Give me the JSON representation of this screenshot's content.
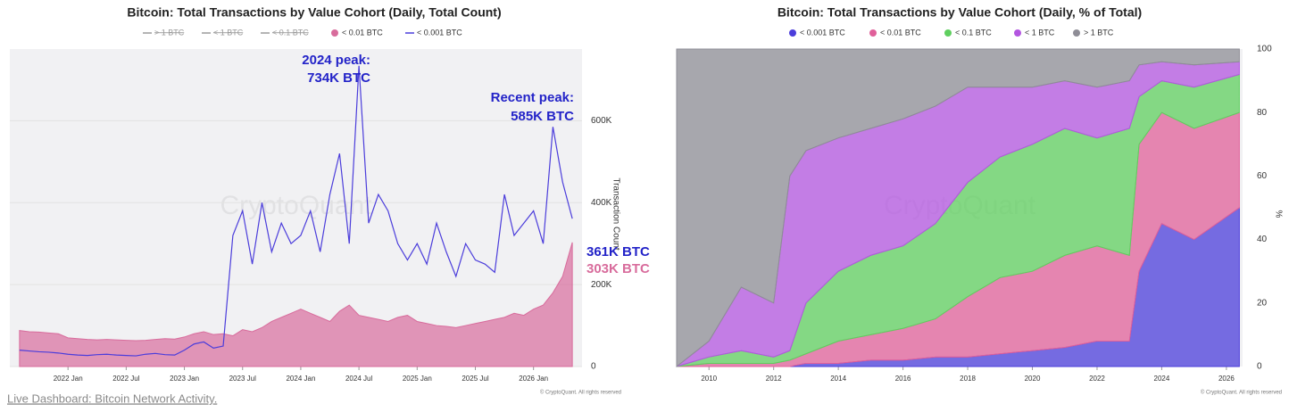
{
  "chart_data": [
    {
      "type": "line",
      "title": "Bitcoin: Total Transactions by Value Cohort (Daily, Total Count)",
      "y_label": "Transaction Count",
      "watermark": "CryptoQuant",
      "credit": "© CryptoQuant. All rights reserved",
      "x": [
        "2021-08",
        "2021-09",
        "2021-10",
        "2021-11",
        "2021-12",
        "2022-01",
        "2022-02",
        "2022-03",
        "2022-04",
        "2022-05",
        "2022-06",
        "2022-07",
        "2022-08",
        "2022-09",
        "2022-10",
        "2022-11",
        "2022-12",
        "2023-01",
        "2023-02",
        "2023-03",
        "2023-04",
        "2023-05",
        "2023-06",
        "2023-07",
        "2023-08",
        "2023-09",
        "2023-10",
        "2023-11",
        "2023-12",
        "2024-01",
        "2024-02",
        "2024-03",
        "2024-04",
        "2024-05",
        "2024-06",
        "2024-07",
        "2024-08",
        "2024-09",
        "2024-10",
        "2024-11",
        "2024-12",
        "2025-01",
        "2025-02",
        "2025-03",
        "2025-04",
        "2025-05",
        "2025-06",
        "2025-07",
        "2025-08",
        "2025-09",
        "2025-10",
        "2025-11",
        "2025-12",
        "2026-01",
        "2026-02",
        "2026-03",
        "2026-04",
        "2026-05"
      ],
      "xlim": [
        "2021-07",
        "2026-06"
      ],
      "xticks": [
        {
          "value": "2022-01",
          "label": "2022 Jan"
        },
        {
          "value": "2022-07",
          "label": "2022 Jul"
        },
        {
          "value": "2023-01",
          "label": "2023 Jan"
        },
        {
          "value": "2023-07",
          "label": "2023 Jul"
        },
        {
          "value": "2024-01",
          "label": "2024 Jan"
        },
        {
          "value": "2024-07",
          "label": "2024 Jul"
        },
        {
          "value": "2025-01",
          "label": "2025 Jan"
        },
        {
          "value": "2025-07",
          "label": "2025 Jul"
        },
        {
          "value": "2026-01",
          "label": "2026 Jan"
        }
      ],
      "ylim": [
        0,
        775000
      ],
      "yticks": [
        0,
        {
          "value": 200000,
          "label": "200K"
        },
        {
          "value": 400000,
          "label": "400K"
        },
        {
          "value": 600000,
          "label": "600K"
        }
      ],
      "series": [
        {
          "name": "> 1 BTC",
          "color": "#9a9a9a",
          "visible": false
        },
        {
          "name": "< 1 BTC",
          "color": "#9a9a9a",
          "visible": false
        },
        {
          "name": "< 0.1 BTC",
          "color": "#9a9a9a",
          "visible": false
        },
        {
          "name": "< 0.01 BTC",
          "color": "#d86c9c",
          "area": true,
          "values": [
            88000,
            85000,
            84000,
            82000,
            80000,
            70000,
            68000,
            66000,
            65000,
            66000,
            65000,
            64000,
            63000,
            64000,
            66000,
            68000,
            67000,
            72000,
            80000,
            85000,
            78000,
            80000,
            75000,
            90000,
            85000,
            95000,
            110000,
            120000,
            130000,
            140000,
            130000,
            120000,
            110000,
            135000,
            150000,
            125000,
            120000,
            115000,
            110000,
            120000,
            125000,
            110000,
            105000,
            100000,
            98000,
            95000,
            100000,
            105000,
            110000,
            115000,
            120000,
            130000,
            125000,
            140000,
            150000,
            180000,
            220000,
            303000
          ]
        },
        {
          "name": "< 0.001 BTC",
          "color": "#4b3ddb",
          "values": [
            40000,
            38000,
            36000,
            35000,
            33000,
            30000,
            28000,
            27000,
            29000,
            30000,
            28000,
            27000,
            26000,
            30000,
            32000,
            29000,
            28000,
            40000,
            55000,
            60000,
            45000,
            50000,
            320000,
            380000,
            250000,
            400000,
            280000,
            350000,
            300000,
            320000,
            380000,
            280000,
            420000,
            520000,
            300000,
            734000,
            350000,
            420000,
            380000,
            300000,
            260000,
            300000,
            250000,
            350000,
            280000,
            220000,
            300000,
            260000,
            250000,
            230000,
            420000,
            320000,
            350000,
            380000,
            300000,
            585000,
            450000,
            361000
          ]
        }
      ],
      "annotations": [
        {
          "text": "2024 peak:",
          "color": "#2323c8"
        },
        {
          "text": "734K BTC",
          "color": "#2323c8"
        },
        {
          "text": "Recent peak:",
          "color": "#2323c8"
        },
        {
          "text": "585K BTC",
          "color": "#2323c8"
        },
        {
          "text": "361K BTC",
          "color": "#2323c8"
        },
        {
          "text": "303K BTC",
          "color": "#d86c9c"
        }
      ]
    },
    {
      "type": "stacked-area",
      "title": "Bitcoin: Total Transactions by Value Cohort (Daily, % of Total)",
      "y_label": "%",
      "watermark": "CryptoQuant",
      "credit": "© CryptoQuant. All rights reserved",
      "x": [
        2009,
        2010,
        2011,
        2012,
        2012.5,
        2013,
        2014,
        2015,
        2016,
        2017,
        2018,
        2019,
        2020,
        2021,
        2022,
        2023,
        2023.3,
        2024,
        2025,
        2026.4
      ],
      "xlim": [
        2009,
        2026.5
      ],
      "xticks": [
        2010,
        2012,
        2014,
        2016,
        2018,
        2020,
        2022,
        2024,
        2026
      ],
      "ylim": [
        0,
        100
      ],
      "yticks": [
        0,
        20,
        40,
        60,
        80,
        100
      ],
      "series": [
        {
          "name": "< 0.001 BTC",
          "color": "#4b3ddb",
          "values": [
            0,
            0,
            0,
            0,
            0,
            1,
            1,
            2,
            2,
            3,
            3,
            4,
            5,
            6,
            8,
            8,
            30,
            45,
            40,
            50
          ]
        },
        {
          "name": "< 0.01 BTC",
          "color": "#e0609a",
          "values": [
            0,
            1,
            1,
            1,
            2,
            3,
            7,
            8,
            10,
            12,
            19,
            24,
            25,
            29,
            30,
            27,
            40,
            35,
            35,
            30
          ]
        },
        {
          "name": "< 0.1 BTC",
          "color": "#5fcf5f",
          "values": [
            0,
            2,
            4,
            2,
            3,
            16,
            22,
            25,
            26,
            30,
            36,
            38,
            40,
            40,
            34,
            40,
            15,
            10,
            13,
            12
          ]
        },
        {
          "name": "< 1 BTC",
          "color": "#b356e0",
          "values": [
            0,
            5,
            20,
            17,
            55,
            48,
            42,
            40,
            40,
            37,
            30,
            22,
            18,
            15,
            16,
            15,
            10,
            6,
            7,
            4
          ]
        },
        {
          "name": "> 1 BTC",
          "color": "#8e8d96",
          "values": [
            100,
            92,
            75,
            80,
            40,
            32,
            28,
            25,
            22,
            18,
            12,
            12,
            12,
            10,
            12,
            10,
            5,
            4,
            5,
            4
          ]
        }
      ]
    }
  ],
  "footer_link": "Live Dashboard: Bitcoin Network Activity."
}
